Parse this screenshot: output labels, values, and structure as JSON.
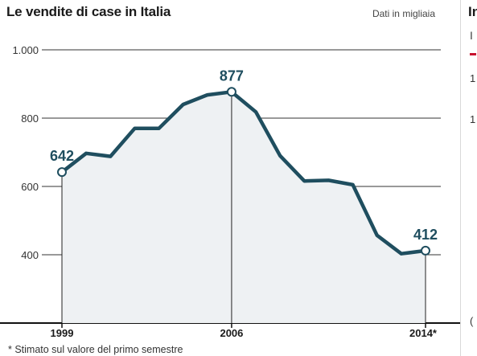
{
  "header": {
    "title": "Le vendite di case in Italia",
    "unit_note": "Dati in migliaia"
  },
  "footnote": "* Stimato sul valore del primo semestre",
  "adjacent_panel": {
    "title_fragment": "In",
    "subtitle_fragment": "I",
    "tick_1": "1",
    "tick_2": "1",
    "tick_3": "("
  },
  "colors": {
    "line": "#1f4e5f",
    "area": "#eef1f3",
    "grid": "#333333",
    "label": "#1f4e5f",
    "marker_fill": "#ffffff"
  },
  "chart_data": {
    "type": "area",
    "title": "Le vendite di case in Italia",
    "unit": "Dati in migliaia",
    "x": [
      1999,
      2000,
      2001,
      2002,
      2003,
      2004,
      2005,
      2006,
      2007,
      2008,
      2009,
      2010,
      2011,
      2012,
      2013,
      2014
    ],
    "values": [
      642,
      697,
      688,
      770,
      770,
      840,
      868,
      877,
      818,
      690,
      616,
      618,
      605,
      457,
      403,
      412
    ],
    "xtick_labels": [
      "1999",
      "2006",
      "2014*"
    ],
    "xticks": [
      1999,
      2006,
      2014
    ],
    "yticks": [
      400,
      600,
      800,
      1000
    ],
    "ytick_labels": [
      "400",
      "600",
      "800",
      "1.000"
    ],
    "ylim": [
      380,
      1040
    ],
    "grid": true,
    "annotations": [
      {
        "x": 1999,
        "label": "642"
      },
      {
        "x": 2006,
        "label": "877"
      },
      {
        "x": 2014,
        "label": "412"
      }
    ]
  }
}
